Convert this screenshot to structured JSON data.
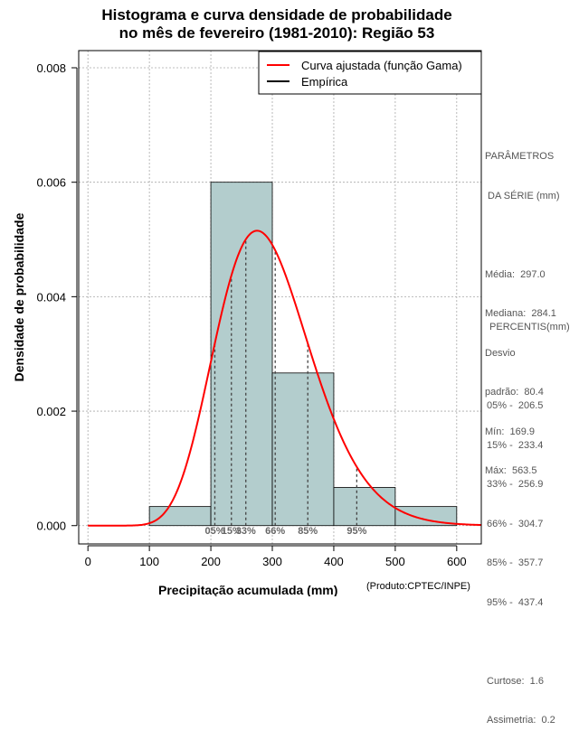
{
  "chart_data": {
    "type": "histogram",
    "title_lines": [
      "Histograma e curva densidade de probabilidade",
      "no mês de fevereiro (1981-2010): Região 53"
    ],
    "xlabel": "Precipitação acumulada (mm)",
    "ylabel": "Densidade de probabilidade",
    "source_note": "(Produto:CPTEC/INPE)",
    "xlim": [
      -15,
      640
    ],
    "ylim": [
      -0.00032,
      0.0083
    ],
    "x_ticks": [
      0,
      100,
      200,
      300,
      400,
      500,
      600
    ],
    "y_ticks": [
      0.0,
      0.002,
      0.004,
      0.006,
      0.008
    ],
    "y_tick_labels": [
      "0.000",
      "0.002",
      "0.004",
      "0.006",
      "0.008"
    ],
    "grid": true,
    "bins": [
      {
        "start": 100,
        "end": 200,
        "density": 0.000333
      },
      {
        "start": 200,
        "end": 300,
        "density": 0.006
      },
      {
        "start": 300,
        "end": 400,
        "density": 0.002667
      },
      {
        "start": 400,
        "end": 500,
        "density": 0.000667
      },
      {
        "start": 500,
        "end": 600,
        "density": 0.000333
      }
    ],
    "fitted_curve": {
      "name": "Curva ajustada (função Gama)",
      "color": "#ff0000",
      "distribution": "gamma",
      "shape": 13.8,
      "scale": 21.5
    },
    "legend": [
      {
        "label": "Curva ajustada (função Gama)",
        "color": "#ff0000"
      },
      {
        "label": "Empírica",
        "color": "#000000"
      }
    ],
    "percentile_lines": [
      {
        "label": "05%",
        "x": 206.5
      },
      {
        "label": "15%",
        "x": 233.4
      },
      {
        "label": "33%",
        "x": 256.9
      },
      {
        "label": "66%",
        "x": 304.7
      },
      {
        "label": "85%",
        "x": 357.7
      },
      {
        "label": "95%",
        "x": 437.4
      }
    ]
  },
  "params_panel": {
    "heading": [
      "PARÂMETROS",
      " DA SÉRIE (mm)"
    ],
    "lines": [
      "Média:  297.0",
      "Mediana:  284.1",
      "Desvio",
      "padrão:  80.4",
      "Mín:  169.9",
      "Máx:  563.5"
    ]
  },
  "percentis_panel": {
    "heading": " PERCENTIS(mm)",
    "lines": [
      "05% -  206.5",
      "15% -  233.4",
      "33% -  256.9",
      "66% -  304.7",
      "85% -  357.7",
      "95% -  437.4"
    ],
    "extra": [
      "Curtose:  1.6",
      "Assimetria:  0.2"
    ]
  }
}
